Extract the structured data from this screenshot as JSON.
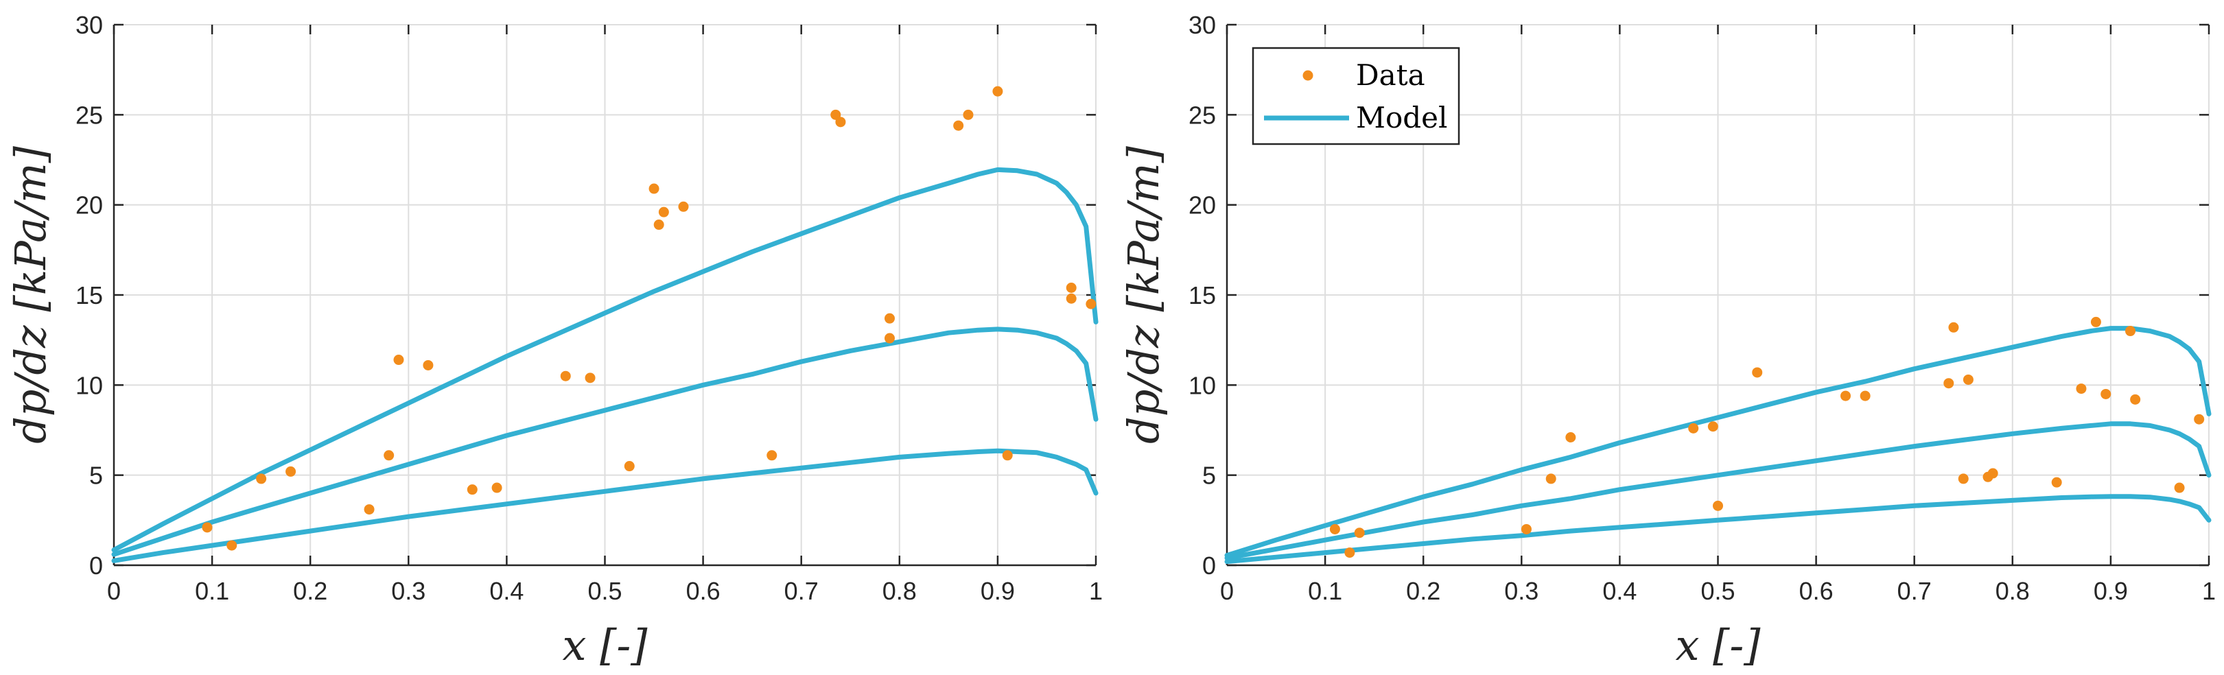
{
  "colors": {
    "data": "#F28C1B",
    "model": "#34B0D2",
    "grid": "#DEDEDE",
    "axis": "#262626"
  },
  "legend": {
    "data_label": "Data",
    "model_label": "Model"
  },
  "chart_data": [
    {
      "type": "scatter",
      "title": "",
      "xlabel": "x [-]",
      "ylabel": "dp/dz [kPa/m]",
      "xlim": [
        0,
        1
      ],
      "ylim": [
        0,
        30
      ],
      "xticks": [
        0,
        0.1,
        0.2,
        0.3,
        0.4,
        0.5,
        0.6,
        0.7,
        0.8,
        0.9,
        1
      ],
      "xtick_labels": [
        "0",
        "0.1",
        "0.2",
        "0.3",
        "0.4",
        "0.5",
        "0.6",
        "0.7",
        "0.8",
        "0.9",
        "1"
      ],
      "yticks": [
        0,
        5,
        10,
        15,
        20,
        25,
        30
      ],
      "ytick_labels": [
        "0",
        "5",
        "10",
        "15",
        "20",
        "25",
        "30"
      ],
      "grid": true,
      "legend": false,
      "series": [
        {
          "name": "Data",
          "kind": "scatter",
          "x": [
            0.095,
            0.12,
            0.15,
            0.18,
            0.26,
            0.28,
            0.29,
            0.32,
            0.365,
            0.39,
            0.46,
            0.485,
            0.525,
            0.55,
            0.555,
            0.56,
            0.58,
            0.67,
            0.735,
            0.74,
            0.79,
            0.79,
            0.86,
            0.87,
            0.9,
            0.91,
            0.975,
            0.975,
            0.995
          ],
          "y": [
            2.1,
            1.1,
            4.8,
            5.2,
            3.1,
            6.1,
            11.4,
            11.1,
            4.2,
            4.3,
            10.5,
            10.4,
            5.5,
            20.9,
            18.9,
            19.6,
            19.9,
            6.1,
            25.0,
            24.6,
            13.7,
            12.6,
            24.4,
            25.0,
            26.3,
            6.1,
            15.4,
            14.8,
            14.5
          ]
        },
        {
          "name": "Model",
          "kind": "line",
          "x": [
            0,
            0.05,
            0.1,
            0.15,
            0.2,
            0.25,
            0.3,
            0.35,
            0.4,
            0.45,
            0.5,
            0.55,
            0.6,
            0.65,
            0.7,
            0.75,
            0.8,
            0.85,
            0.88,
            0.9,
            0.92,
            0.94,
            0.96,
            0.97,
            0.98,
            0.99,
            1.0
          ],
          "y": [
            0.85,
            2.3,
            3.7,
            5.1,
            6.4,
            7.7,
            9.0,
            10.3,
            11.6,
            12.8,
            14.0,
            15.2,
            16.3,
            17.4,
            18.4,
            19.4,
            20.4,
            21.2,
            21.7,
            21.95,
            21.9,
            21.7,
            21.2,
            20.7,
            20.0,
            18.8,
            13.5
          ]
        },
        {
          "name": "Model",
          "kind": "line",
          "x": [
            0,
            0.05,
            0.1,
            0.15,
            0.2,
            0.25,
            0.3,
            0.35,
            0.4,
            0.45,
            0.5,
            0.55,
            0.6,
            0.65,
            0.7,
            0.75,
            0.8,
            0.85,
            0.88,
            0.9,
            0.92,
            0.94,
            0.96,
            0.97,
            0.98,
            0.99,
            1.0
          ],
          "y": [
            0.6,
            1.5,
            2.4,
            3.2,
            4.0,
            4.8,
            5.6,
            6.4,
            7.2,
            7.9,
            8.6,
            9.3,
            10.0,
            10.6,
            11.3,
            11.9,
            12.4,
            12.9,
            13.05,
            13.1,
            13.05,
            12.9,
            12.6,
            12.3,
            11.9,
            11.2,
            8.1
          ]
        },
        {
          "name": "Model",
          "kind": "line",
          "x": [
            0,
            0.05,
            0.1,
            0.15,
            0.2,
            0.25,
            0.3,
            0.35,
            0.4,
            0.45,
            0.5,
            0.55,
            0.6,
            0.65,
            0.7,
            0.75,
            0.8,
            0.85,
            0.88,
            0.9,
            0.92,
            0.94,
            0.96,
            0.97,
            0.98,
            0.99,
            1.0
          ],
          "y": [
            0.25,
            0.7,
            1.1,
            1.5,
            1.9,
            2.3,
            2.7,
            3.05,
            3.4,
            3.75,
            4.1,
            4.45,
            4.8,
            5.1,
            5.4,
            5.7,
            6.0,
            6.2,
            6.3,
            6.35,
            6.3,
            6.25,
            6.0,
            5.8,
            5.6,
            5.3,
            4.0
          ]
        }
      ]
    },
    {
      "type": "scatter",
      "title": "",
      "xlabel": "x [-]",
      "ylabel": "dp/dz [kPa/m]",
      "xlim": [
        0,
        1
      ],
      "ylim": [
        0,
        30
      ],
      "xticks": [
        0,
        0.1,
        0.2,
        0.3,
        0.4,
        0.5,
        0.6,
        0.7,
        0.8,
        0.9,
        1
      ],
      "xtick_labels": [
        "0",
        "0.1",
        "0.2",
        "0.3",
        "0.4",
        "0.5",
        "0.6",
        "0.7",
        "0.8",
        "0.9",
        "1"
      ],
      "yticks": [
        0,
        5,
        10,
        15,
        20,
        25,
        30
      ],
      "ytick_labels": [
        "0",
        "5",
        "10",
        "15",
        "20",
        "25",
        "30"
      ],
      "grid": true,
      "legend": "top-left",
      "series": [
        {
          "name": "Data",
          "kind": "scatter",
          "x": [
            0.11,
            0.125,
            0.135,
            0.305,
            0.33,
            0.35,
            0.475,
            0.495,
            0.5,
            0.54,
            0.63,
            0.65,
            0.735,
            0.74,
            0.75,
            0.755,
            0.775,
            0.78,
            0.845,
            0.87,
            0.885,
            0.895,
            0.92,
            0.925,
            0.97,
            0.99
          ],
          "y": [
            2.0,
            0.7,
            1.8,
            2.0,
            4.8,
            7.1,
            7.6,
            7.7,
            3.3,
            10.7,
            9.4,
            9.4,
            10.1,
            13.2,
            4.8,
            10.3,
            4.9,
            5.1,
            4.6,
            9.8,
            13.5,
            9.5,
            13.0,
            9.2,
            4.3,
            8.1
          ]
        },
        {
          "name": "Model",
          "kind": "line",
          "x": [
            0,
            0.05,
            0.1,
            0.15,
            0.2,
            0.25,
            0.3,
            0.35,
            0.4,
            0.45,
            0.5,
            0.55,
            0.6,
            0.65,
            0.7,
            0.75,
            0.8,
            0.85,
            0.88,
            0.9,
            0.92,
            0.94,
            0.96,
            0.97,
            0.98,
            0.99,
            1.0
          ],
          "y": [
            0.55,
            1.4,
            2.2,
            3.0,
            3.8,
            4.5,
            5.3,
            6.0,
            6.8,
            7.5,
            8.2,
            8.9,
            9.6,
            10.2,
            10.9,
            11.5,
            12.1,
            12.7,
            13.0,
            13.15,
            13.15,
            13.0,
            12.7,
            12.4,
            12.0,
            11.3,
            8.4
          ]
        },
        {
          "name": "Model",
          "kind": "line",
          "x": [
            0,
            0.05,
            0.1,
            0.15,
            0.2,
            0.25,
            0.3,
            0.35,
            0.4,
            0.45,
            0.5,
            0.55,
            0.6,
            0.65,
            0.7,
            0.75,
            0.8,
            0.85,
            0.88,
            0.9,
            0.92,
            0.94,
            0.96,
            0.97,
            0.98,
            0.99,
            1.0
          ],
          "y": [
            0.4,
            0.9,
            1.4,
            1.9,
            2.4,
            2.8,
            3.3,
            3.7,
            4.2,
            4.6,
            5.0,
            5.4,
            5.8,
            6.2,
            6.6,
            6.95,
            7.3,
            7.6,
            7.75,
            7.85,
            7.85,
            7.75,
            7.5,
            7.3,
            7.0,
            6.6,
            5.0
          ]
        },
        {
          "name": "Model",
          "kind": "line",
          "x": [
            0,
            0.05,
            0.1,
            0.15,
            0.2,
            0.25,
            0.3,
            0.35,
            0.4,
            0.45,
            0.5,
            0.55,
            0.6,
            0.65,
            0.7,
            0.75,
            0.8,
            0.85,
            0.88,
            0.9,
            0.92,
            0.94,
            0.96,
            0.97,
            0.98,
            0.99,
            1.0
          ],
          "y": [
            0.2,
            0.45,
            0.7,
            0.95,
            1.2,
            1.45,
            1.65,
            1.9,
            2.1,
            2.3,
            2.5,
            2.7,
            2.9,
            3.1,
            3.3,
            3.45,
            3.6,
            3.75,
            3.8,
            3.82,
            3.82,
            3.78,
            3.65,
            3.55,
            3.4,
            3.2,
            2.5
          ]
        }
      ]
    }
  ]
}
